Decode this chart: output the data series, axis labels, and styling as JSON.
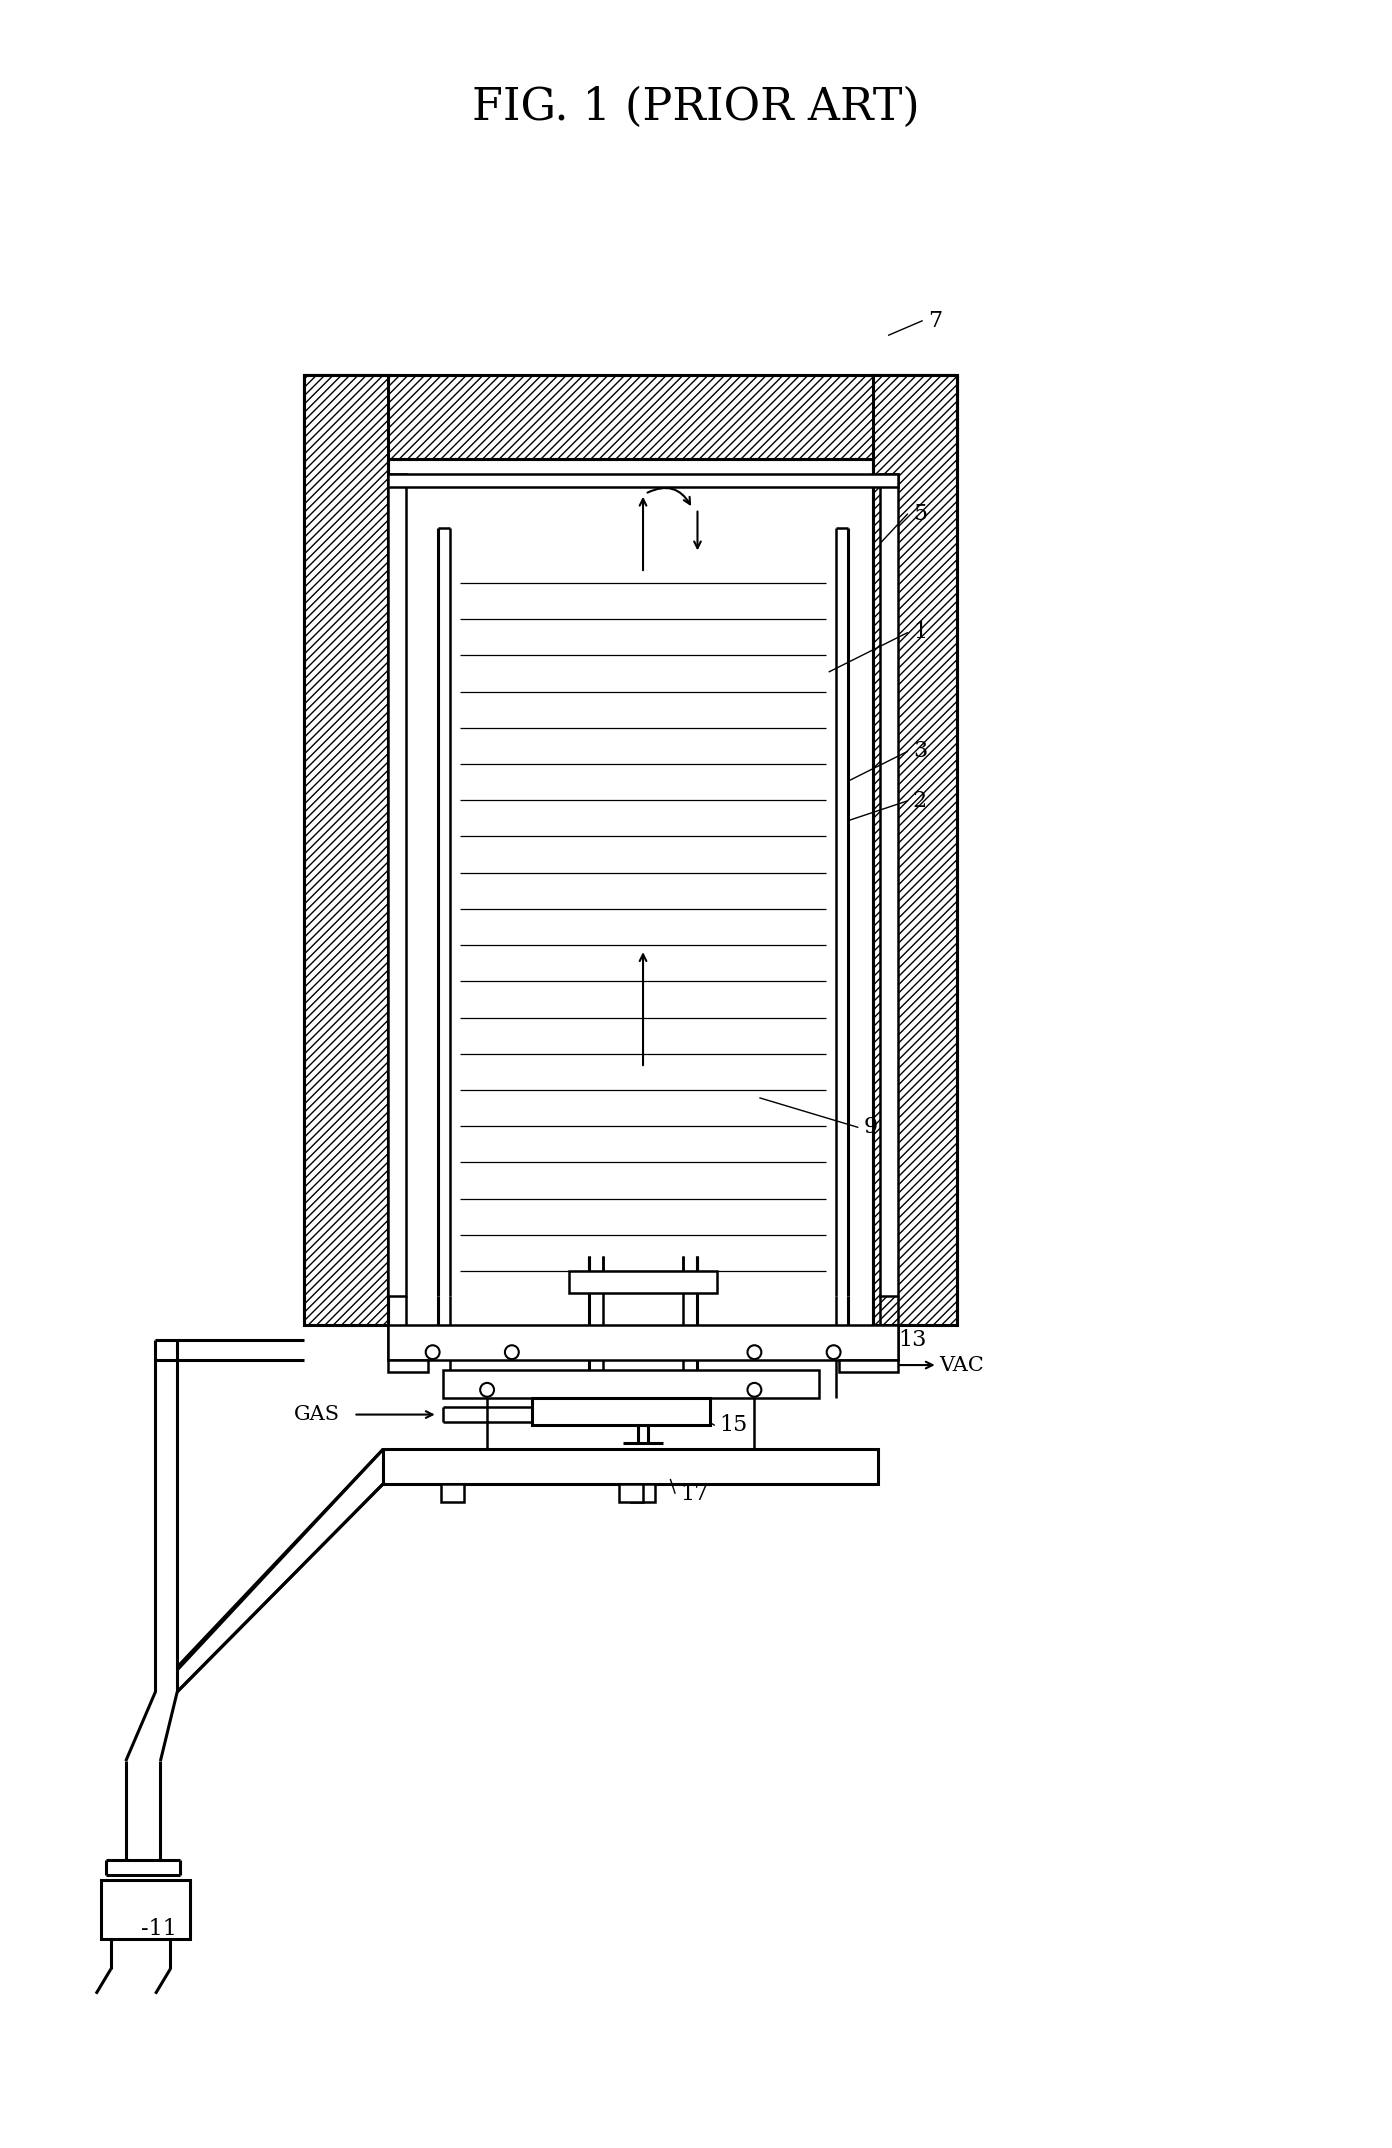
{
  "title": "FIG. 1 (PRIOR ART)",
  "title_fontsize": 32,
  "bg_color": "#ffffff",
  "lw": 1.8,
  "lw2": 2.2,
  "lw_thin": 1.0
}
